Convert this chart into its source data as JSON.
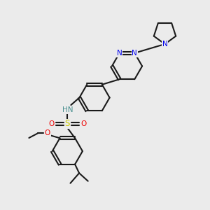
{
  "background_color": "#ebebeb",
  "bond_color": "#1a1a1a",
  "bond_width": 1.5,
  "N_color": "#0000ee",
  "O_color": "#ee0000",
  "S_color": "#cccc00",
  "H_color": "#4a9090",
  "fig_width": 3.0,
  "fig_height": 3.0,
  "dpi": 100,
  "xlim": [
    0,
    10
  ],
  "ylim": [
    0,
    10
  ]
}
